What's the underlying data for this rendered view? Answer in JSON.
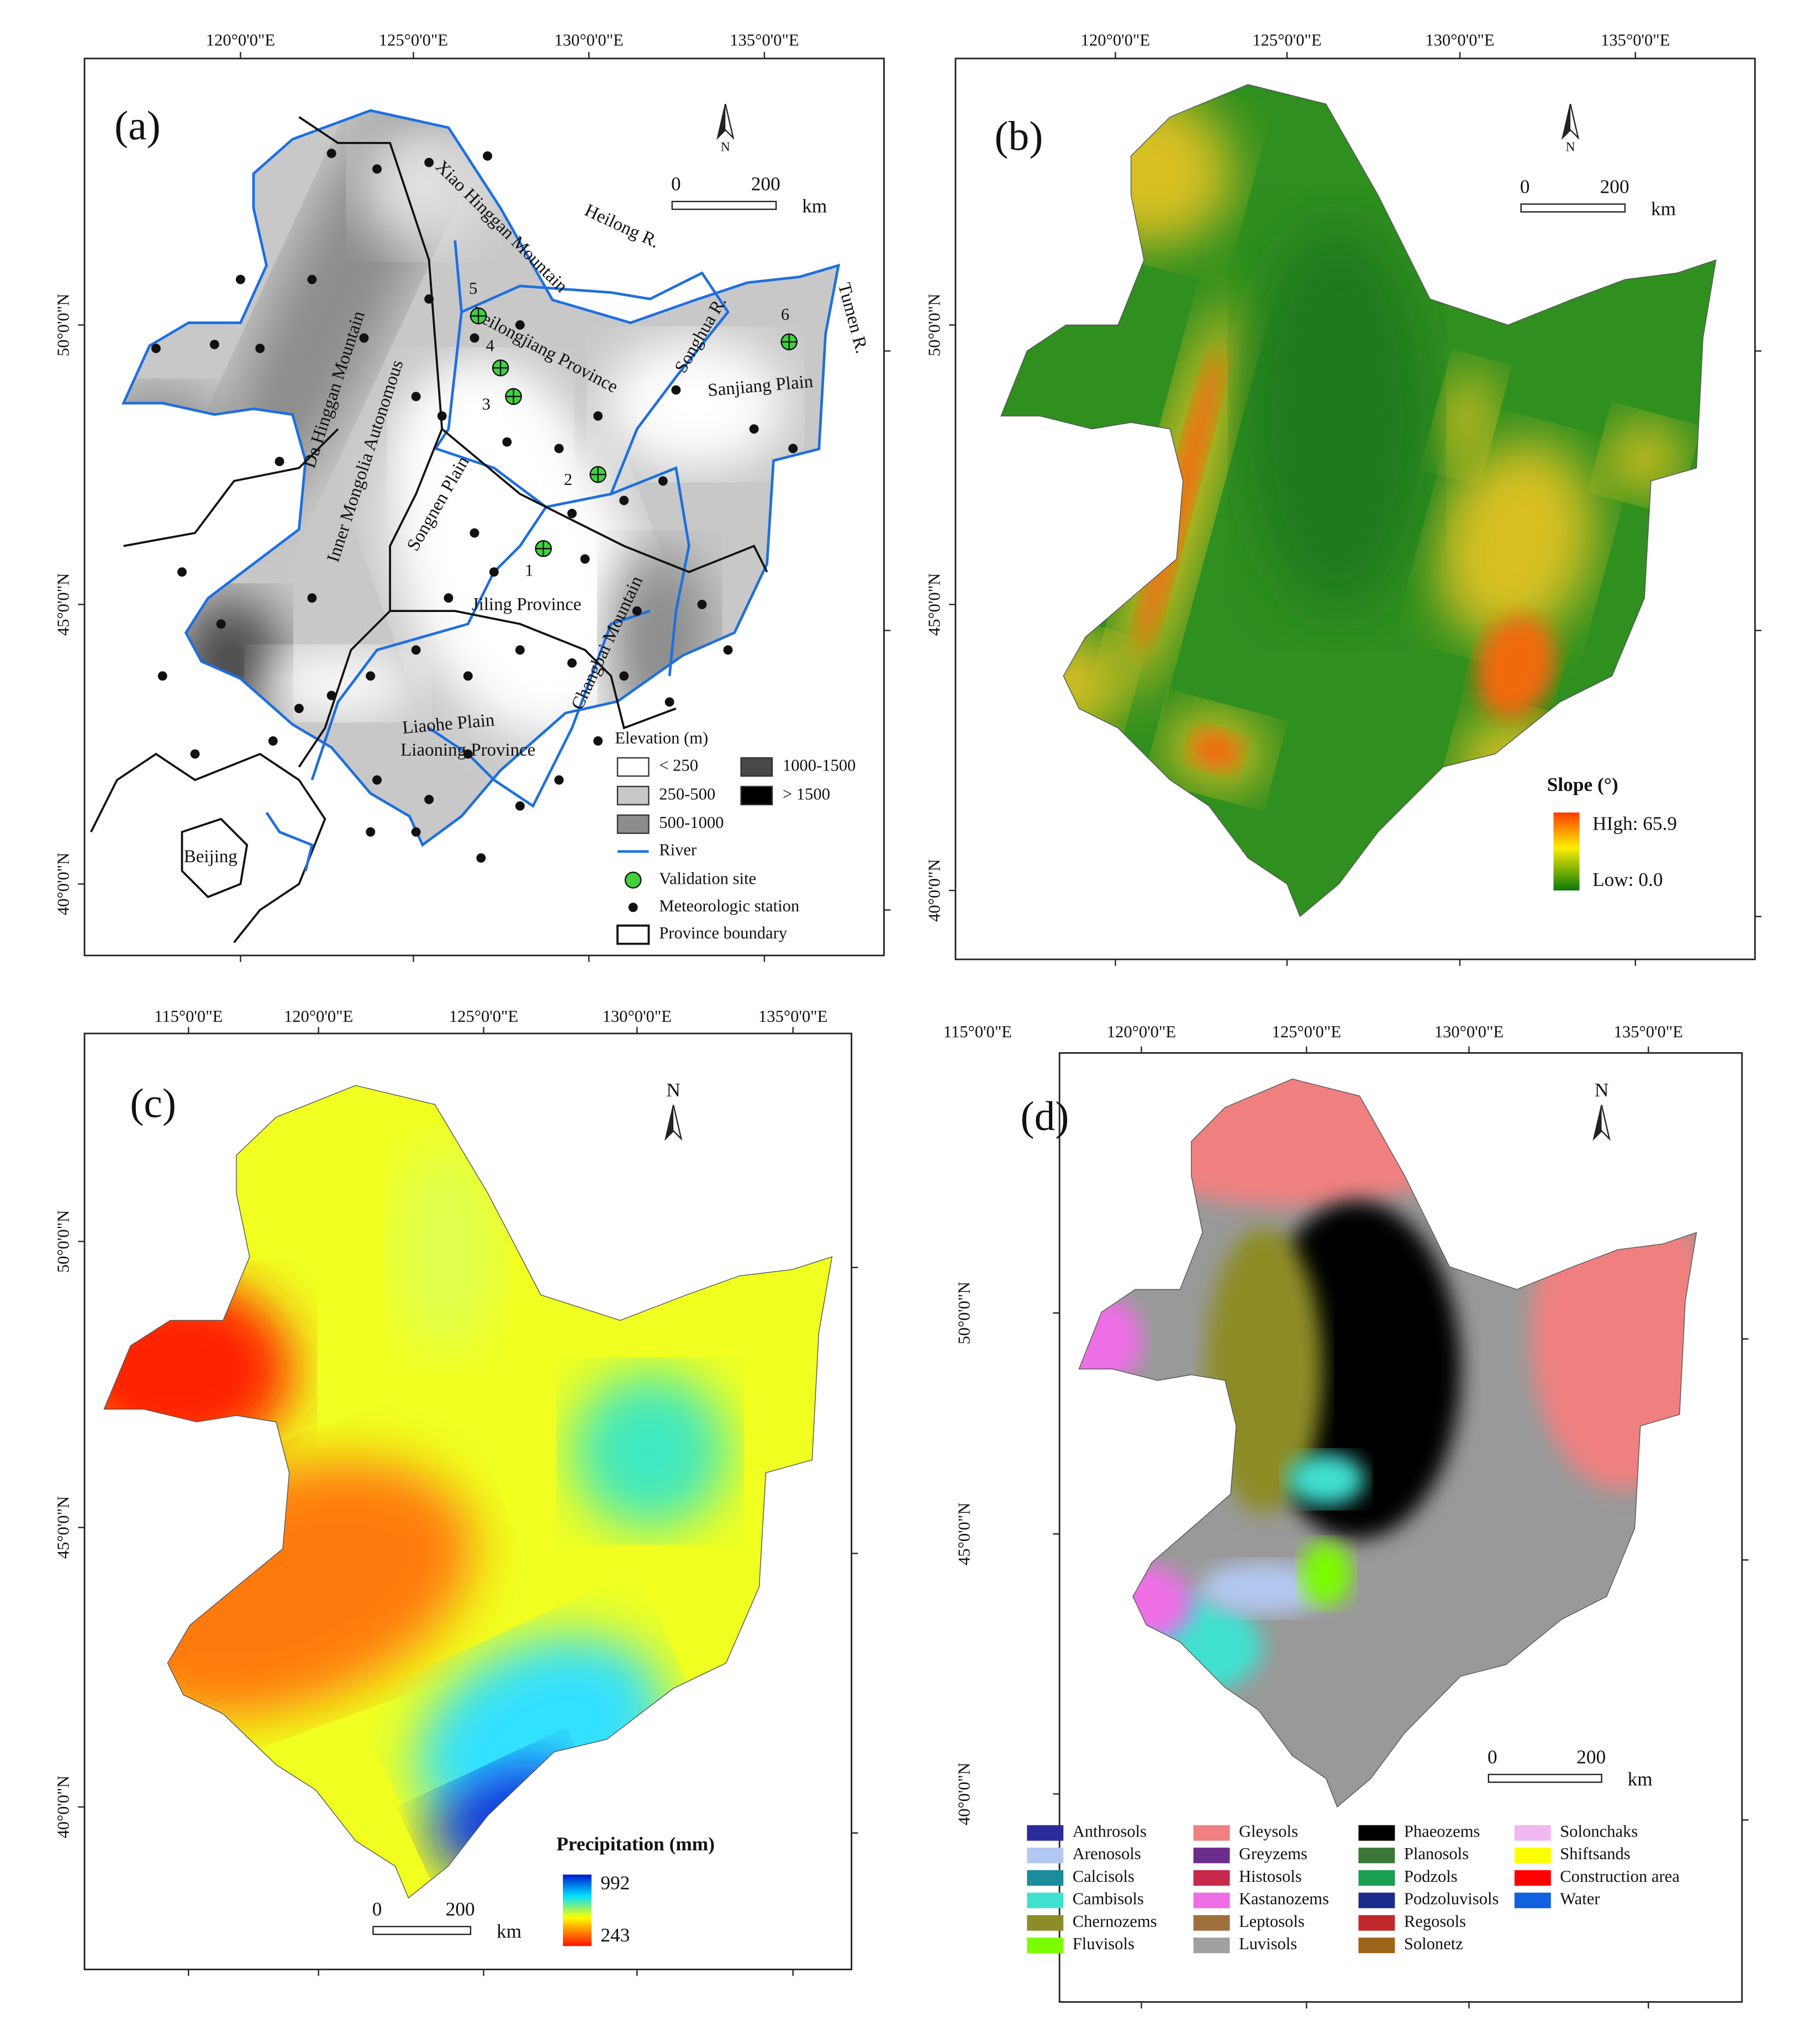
{
  "panels": [
    {
      "label": "(a)",
      "lon_ticks": [
        "120°0'0\"E",
        "125°0'0\"E",
        "130°0'0\"E",
        "135°0'0\"E"
      ],
      "lat_ticks": [
        "50°0'0\"N",
        "45°0'0\"N",
        "40°0'0\"N"
      ],
      "north": "N",
      "scale_bar": [
        "0",
        "200"
      ],
      "scale_unit": "km",
      "places": [
        "Heilong R.",
        "Tumen R.",
        "Songhua R.",
        "Xiao Hinggan Mountain",
        "Da Hinggan Mountain",
        "Heilongjiang Province",
        "Inner Mongolia Autonomous",
        "Sanjiang Plain",
        "Songnen Plain",
        "Jiling Province",
        "Changbai Mountain",
        "Liaohe Plain",
        "Liaoning Province",
        "Beijing"
      ],
      "site_labels": [
        "1",
        "2",
        "3",
        "4",
        "5",
        "6"
      ],
      "legend": {
        "title": "Elevation (m)",
        "classes": [
          {
            "label": "< 250",
            "color": "#ffffff"
          },
          {
            "label": "250-500",
            "color": "#c8c8c8"
          },
          {
            "label": "500-1000",
            "color": "#8c8c8c"
          },
          {
            "label": "1000-1500",
            "color": "#484848"
          },
          {
            "label": "> 1500",
            "color": "#000000"
          }
        ],
        "symbols": [
          "River",
          "Validation site",
          "Meteorologic station",
          "Province boundary"
        ]
      }
    },
    {
      "label": "(b)",
      "lon_ticks": [
        "120°0'0\"E",
        "125°0'0\"E",
        "130°0'0\"E",
        "135°0'0\"E"
      ],
      "lat_ticks": [
        "50°0'0\"N",
        "45°0'0\"N",
        "40°0'0\"N"
      ],
      "north": "N",
      "scale_bar": [
        "0",
        "200"
      ],
      "scale_unit": "km",
      "legend": {
        "title": "Slope (°)",
        "high": "HIgh: 65.9",
        "low": "Low: 0.0"
      }
    },
    {
      "label": "(c)",
      "lon_ticks": [
        "115°0'0\"E",
        "120°0'0\"E",
        "125°0'0\"E",
        "130°0'0\"E",
        "135°0'0\"E"
      ],
      "lat_ticks": [
        "50°0'0\"N",
        "45°0'0\"N",
        "40°0'0\"N"
      ],
      "north": "N",
      "scale_bar": [
        "0",
        "200"
      ],
      "scale_unit": "km",
      "legend": {
        "title": "Precipitation (mm)",
        "high": "992",
        "low": "243"
      }
    },
    {
      "label": "(d)",
      "lon_ticks": [
        "115°0'0\"E",
        "120°0'0\"E",
        "125°0'0\"E",
        "130°0'0\"E",
        "135°0'0\"E"
      ],
      "lat_ticks": [
        "50°0'0\"N",
        "45°0'0\"N",
        "40°0'0\"N"
      ],
      "north": "N",
      "scale_bar": [
        "0",
        "200"
      ],
      "scale_unit": "km",
      "legend": {
        "classes": [
          {
            "label": "Anthrosols",
            "color": "#2b2b9b"
          },
          {
            "label": "Arenosols",
            "color": "#b3c8f0"
          },
          {
            "label": "Calcisols",
            "color": "#1a8c9c"
          },
          {
            "label": "Cambisols",
            "color": "#40e0d0"
          },
          {
            "label": "Chernozems",
            "color": "#8c8c28"
          },
          {
            "label": "Fluvisols",
            "color": "#7cfc00"
          },
          {
            "label": "Gleysols",
            "color": "#f08080"
          },
          {
            "label": "Greyzems",
            "color": "#6b2d8c"
          },
          {
            "label": "Histosols",
            "color": "#c8284a"
          },
          {
            "label": "Kastanozems",
            "color": "#ee6ee6"
          },
          {
            "label": "Leptosols",
            "color": "#a0703c"
          },
          {
            "label": "Luvisols",
            "color": "#a0a0a0"
          },
          {
            "label": "Phaeozems",
            "color": "#000000"
          },
          {
            "label": "Planosols",
            "color": "#3c7838"
          },
          {
            "label": "Podzols",
            "color": "#18a050"
          },
          {
            "label": "Podzoluvisols",
            "color": "#1c2c8c"
          },
          {
            "label": "Regosols",
            "color": "#c0282c"
          },
          {
            "label": "Solonetz",
            "color": "#9c6418"
          },
          {
            "label": "Solonchaks",
            "color": "#f0b8f0"
          },
          {
            "label": "Shiftsands",
            "color": "#ffff00"
          },
          {
            "label": "Construction area",
            "color": "#ff0000"
          },
          {
            "label": "Water",
            "color": "#1060e0"
          }
        ]
      }
    }
  ]
}
